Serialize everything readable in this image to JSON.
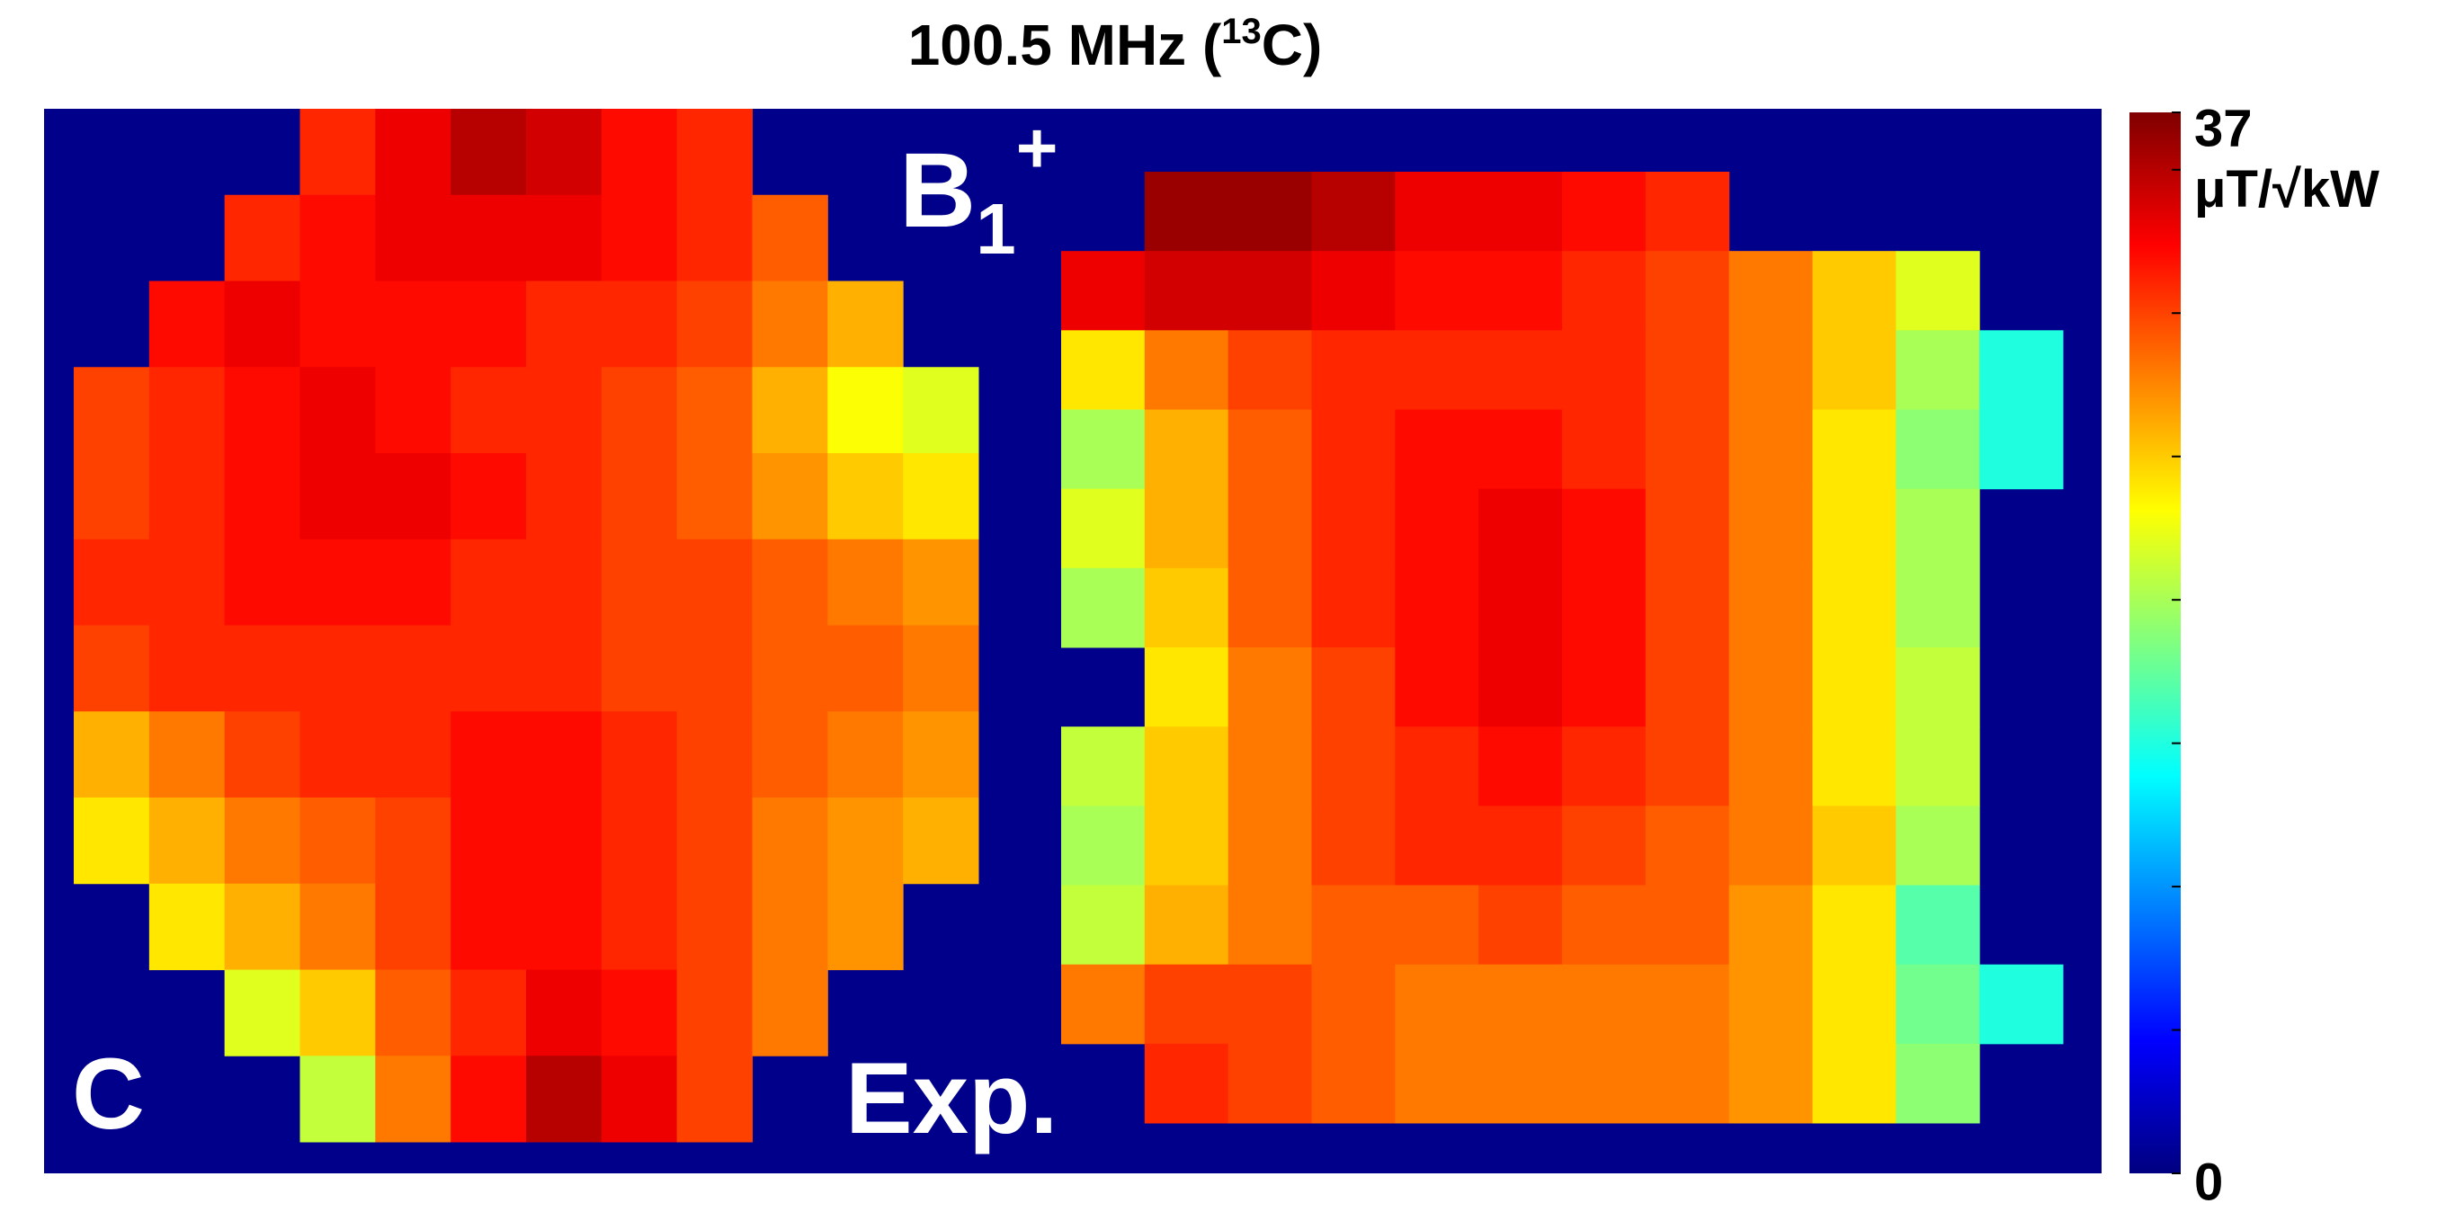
{
  "chart_data": {
    "type": "heatmap",
    "title": {
      "text": "100.5 MHz (",
      "superscript": "13",
      "suffix": "C)"
    },
    "colormap": "jet",
    "background_color": "#00008b",
    "clim": [
      0,
      37
    ],
    "colorbar_ticks": [
      0,
      37
    ],
    "colorbar_minor_ticks": [
      5,
      10,
      15,
      20,
      25,
      30,
      35
    ],
    "colorbar_unit": "μT/√kW",
    "annotations": {
      "b1": "B",
      "b1_sub": "1",
      "b1_sup": "+",
      "panel": "C",
      "exp": "Exp."
    },
    "maps": [
      {
        "values": [
          [
            null,
            null,
            null,
            31,
            33,
            35,
            34,
            32,
            31,
            null,
            null,
            null
          ],
          [
            null,
            null,
            31,
            32,
            33,
            33,
            33,
            32,
            31,
            29,
            null,
            null
          ],
          [
            null,
            32,
            33,
            32,
            32,
            32,
            31,
            31,
            30,
            28,
            26,
            null
          ],
          [
            30,
            31,
            32,
            33,
            32,
            31,
            31,
            30,
            29,
            26,
            23,
            22
          ],
          [
            30,
            31,
            32,
            33,
            33,
            32,
            31,
            30,
            29,
            27,
            25,
            24
          ],
          [
            31,
            31,
            32,
            32,
            32,
            31,
            31,
            30,
            30,
            29,
            28,
            27
          ],
          [
            30,
            31,
            31,
            31,
            31,
            31,
            31,
            30,
            30,
            29,
            29,
            28
          ],
          [
            26,
            28,
            30,
            31,
            31,
            32,
            32,
            31,
            30,
            29,
            28,
            27
          ],
          [
            24,
            26,
            28,
            29,
            30,
            32,
            32,
            31,
            30,
            28,
            27,
            26
          ],
          [
            null,
            24,
            26,
            28,
            30,
            32,
            32,
            31,
            30,
            28,
            27,
            null
          ],
          [
            null,
            null,
            22,
            25,
            29,
            31,
            33,
            32,
            30,
            28,
            null,
            null
          ],
          [
            null,
            null,
            null,
            21,
            28,
            32,
            35,
            33,
            30,
            null,
            null,
            null
          ]
        ]
      },
      {
        "values": [
          [
            null,
            36,
            36,
            35,
            33,
            33,
            32,
            31,
            null,
            null,
            null,
            null
          ],
          [
            33,
            34,
            34,
            33,
            32,
            32,
            31,
            30,
            28,
            25,
            22,
            null
          ],
          [
            24,
            28,
            30,
            31,
            31,
            31,
            31,
            30,
            28,
            25,
            20,
            15
          ],
          [
            20,
            26,
            29,
            31,
            32,
            32,
            31,
            30,
            28,
            24,
            19,
            15
          ],
          [
            22,
            26,
            29,
            31,
            32,
            33,
            32,
            30,
            28,
            24,
            20,
            null
          ],
          [
            20,
            25,
            29,
            31,
            32,
            33,
            32,
            30,
            28,
            24,
            20,
            null
          ],
          [
            null,
            24,
            28,
            30,
            32,
            33,
            32,
            30,
            28,
            24,
            21,
            null
          ],
          [
            21,
            25,
            28,
            30,
            31,
            32,
            31,
            30,
            28,
            24,
            21,
            null
          ],
          [
            20,
            25,
            28,
            30,
            31,
            31,
            30,
            29,
            28,
            25,
            20,
            null
          ],
          [
            21,
            26,
            28,
            29,
            29,
            30,
            29,
            29,
            27,
            24,
            17,
            null
          ],
          [
            28,
            30,
            30,
            29,
            28,
            28,
            28,
            28,
            27,
            24,
            18,
            15
          ],
          [
            null,
            31,
            30,
            29,
            28,
            28,
            28,
            28,
            27,
            24,
            19,
            null
          ]
        ]
      }
    ]
  }
}
